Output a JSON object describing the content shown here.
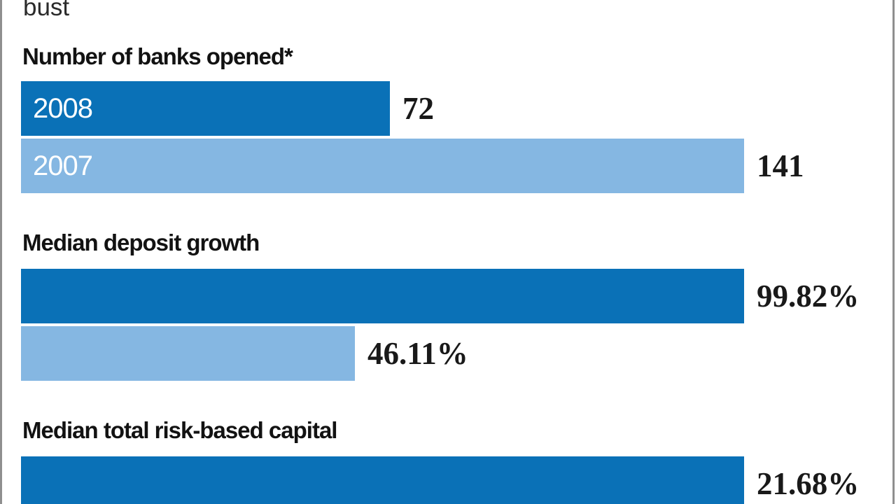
{
  "header": {
    "partial_title": "bust"
  },
  "colors": {
    "dark_blue": "#0a71b7",
    "light_blue": "#85b7e2",
    "border_gray": "#8f8f8f",
    "text_dark": "#191919"
  },
  "chart_data": {
    "type": "bar",
    "orientation": "horizontal",
    "series": [
      "2008",
      "2007"
    ],
    "legend_position": "inside-first-group-bars",
    "grid": false,
    "groups": [
      {
        "label": "Number of banks opened*",
        "bars": [
          {
            "series": "2008",
            "inner_label": "2008",
            "value": 72,
            "display": "72",
            "color": "dark_blue"
          },
          {
            "series": "2007",
            "inner_label": "2007",
            "value": 141,
            "display": "141",
            "color": "light_blue"
          }
        ]
      },
      {
        "label": "Median deposit growth",
        "bars": [
          {
            "series": "2008",
            "value": 99.82,
            "display": "99.82%",
            "color": "dark_blue"
          },
          {
            "series": "2007",
            "value": 46.11,
            "display": "46.11%",
            "color": "light_blue"
          }
        ]
      },
      {
        "label": "Median total risk-based capital",
        "bars": [
          {
            "series": "2008",
            "value": 21.68,
            "display": "21.68%",
            "color": "dark_blue"
          }
        ]
      }
    ]
  }
}
